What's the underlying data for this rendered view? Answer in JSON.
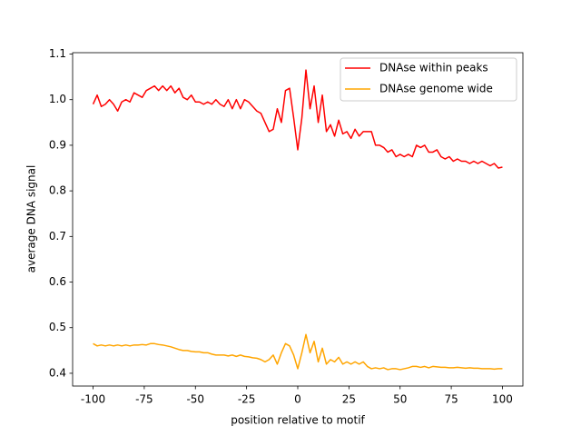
{
  "chart_data": {
    "type": "line",
    "xlabel": "position relative to motif",
    "ylabel": "average DNA signal",
    "x": [
      -100,
      -98,
      -96,
      -94,
      -92,
      -90,
      -88,
      -86,
      -84,
      -82,
      -80,
      -78,
      -76,
      -74,
      -72,
      -70,
      -68,
      -66,
      -64,
      -62,
      -60,
      -58,
      -56,
      -54,
      -52,
      -50,
      -48,
      -46,
      -44,
      -42,
      -40,
      -38,
      -36,
      -34,
      -32,
      -30,
      -28,
      -26,
      -24,
      -22,
      -20,
      -18,
      -16,
      -14,
      -12,
      -10,
      -8,
      -6,
      -4,
      -2,
      0,
      2,
      4,
      6,
      8,
      10,
      12,
      14,
      16,
      18,
      20,
      22,
      24,
      26,
      28,
      30,
      32,
      34,
      36,
      38,
      40,
      42,
      44,
      46,
      48,
      50,
      52,
      54,
      56,
      58,
      60,
      62,
      64,
      66,
      68,
      70,
      72,
      74,
      76,
      78,
      80,
      82,
      84,
      86,
      88,
      90,
      92,
      94,
      96,
      98,
      100
    ],
    "series": [
      {
        "name": "DNAse within peaks",
        "color": "#ff0000",
        "values": [
          0.99,
          1.01,
          0.985,
          0.99,
          1.0,
          0.99,
          0.975,
          0.995,
          1.0,
          0.995,
          1.015,
          1.01,
          1.005,
          1.02,
          1.025,
          1.03,
          1.02,
          1.03,
          1.02,
          1.03,
          1.015,
          1.025,
          1.005,
          1.0,
          1.01,
          0.995,
          0.995,
          0.99,
          0.995,
          0.99,
          1.0,
          0.99,
          0.985,
          1.0,
          0.98,
          1.0,
          0.98,
          1.0,
          0.995,
          0.985,
          0.975,
          0.97,
          0.95,
          0.93,
          0.935,
          0.98,
          0.95,
          1.02,
          1.025,
          0.96,
          0.89,
          0.96,
          1.065,
          0.98,
          1.03,
          0.95,
          1.01,
          0.93,
          0.945,
          0.92,
          0.955,
          0.925,
          0.93,
          0.915,
          0.935,
          0.92,
          0.93,
          0.93,
          0.93,
          0.9,
          0.9,
          0.895,
          0.885,
          0.89,
          0.875,
          0.88,
          0.875,
          0.88,
          0.875,
          0.9,
          0.895,
          0.9,
          0.885,
          0.885,
          0.89,
          0.875,
          0.87,
          0.875,
          0.865,
          0.87,
          0.865,
          0.865,
          0.86,
          0.865,
          0.86,
          0.865,
          0.86,
          0.855,
          0.86,
          0.85,
          0.852
        ]
      },
      {
        "name": "DNAse genome wide",
        "color": "#ffa500",
        "values": [
          0.465,
          0.46,
          0.462,
          0.46,
          0.462,
          0.46,
          0.462,
          0.46,
          0.462,
          0.46,
          0.462,
          0.462,
          0.463,
          0.462,
          0.465,
          0.465,
          0.463,
          0.462,
          0.46,
          0.458,
          0.455,
          0.452,
          0.45,
          0.45,
          0.448,
          0.447,
          0.447,
          0.445,
          0.445,
          0.442,
          0.44,
          0.44,
          0.44,
          0.438,
          0.44,
          0.437,
          0.44,
          0.437,
          0.436,
          0.434,
          0.433,
          0.43,
          0.425,
          0.43,
          0.44,
          0.42,
          0.445,
          0.465,
          0.46,
          0.44,
          0.41,
          0.445,
          0.485,
          0.445,
          0.47,
          0.425,
          0.455,
          0.42,
          0.43,
          0.425,
          0.435,
          0.42,
          0.425,
          0.42,
          0.425,
          0.42,
          0.425,
          0.415,
          0.41,
          0.412,
          0.41,
          0.412,
          0.408,
          0.41,
          0.41,
          0.408,
          0.41,
          0.412,
          0.415,
          0.415,
          0.413,
          0.415,
          0.412,
          0.415,
          0.414,
          0.413,
          0.413,
          0.412,
          0.412,
          0.413,
          0.412,
          0.411,
          0.412,
          0.411,
          0.411,
          0.41,
          0.41,
          0.41,
          0.409,
          0.41,
          0.41
        ]
      }
    ],
    "xlim": [
      -110,
      110
    ],
    "xticks": [
      -100,
      -75,
      -50,
      -25,
      0,
      25,
      50,
      75,
      100
    ],
    "ylim": [
      0.372,
      1.103
    ],
    "yticks": [
      0.4,
      0.5,
      0.6,
      0.7,
      0.8,
      0.9,
      {
        "value": 1,
        "label": "1.0"
      },
      1.1
    ],
    "legend": "upper right"
  }
}
